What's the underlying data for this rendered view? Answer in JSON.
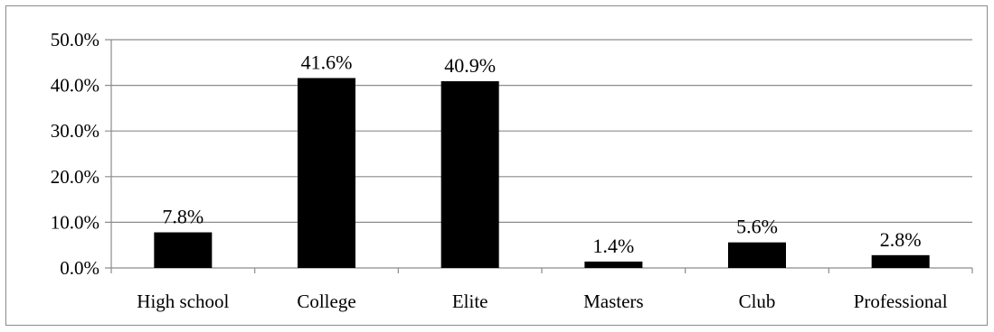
{
  "chart_data": {
    "type": "bar",
    "categories": [
      "High school",
      "College",
      "Elite",
      "Masters",
      "Club",
      "Professional"
    ],
    "values": [
      7.8,
      41.6,
      40.9,
      1.4,
      5.6,
      2.8
    ],
    "data_labels": [
      "7.8%",
      "41.6%",
      "40.9%",
      "1.4%",
      "5.6%",
      "2.8%"
    ],
    "y_ticks": [
      0,
      10,
      20,
      30,
      40,
      50
    ],
    "y_tick_labels": [
      "0.0%",
      "10.0%",
      "20.0%",
      "30.0%",
      "40.0%",
      "50.0%"
    ],
    "ylim": [
      0,
      50
    ],
    "grid": true,
    "legend": "none",
    "title": "",
    "xlabel": "",
    "ylabel": "",
    "colors": {
      "bar": "#000000",
      "grid": "#8c8c8c",
      "axis": "#8c8c8c"
    }
  }
}
